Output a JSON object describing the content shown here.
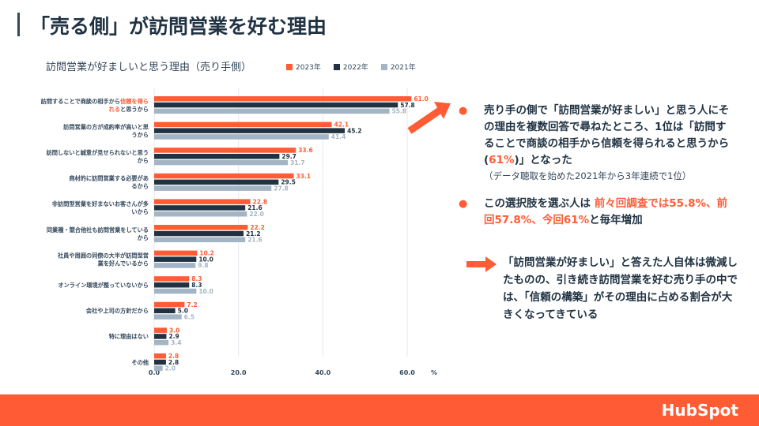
{
  "page": {
    "title": "「売る側」が訪問営業を好む理由",
    "logo_text": "HubSpot"
  },
  "chart_data": {
    "type": "bar",
    "orientation": "horizontal",
    "title": "訪問営業が好ましいと思う理由（売り手側）",
    "xunit": "%",
    "xlim": [
      0,
      60
    ],
    "xticks": [
      "0.0",
      "20.0",
      "40.0",
      "60.0"
    ],
    "grid": true,
    "legend_placement": "top",
    "categories": [
      {
        "label_parts": [
          {
            "text": "訪問することで商談の相手から"
          },
          {
            "text": "信頼を得ら",
            "highlight": true
          },
          {
            "text": "\n"
          },
          {
            "text": "れる",
            "highlight": true
          },
          {
            "text": "と思うから"
          }
        ]
      },
      {
        "label_parts": [
          {
            "text": "訪問営業の方が成約率が高いと思\nうから"
          }
        ]
      },
      {
        "label_parts": [
          {
            "text": "訪問しないと誠意が見せられないと思う\nから"
          }
        ]
      },
      {
        "label_parts": [
          {
            "text": "商材的に訪問営業する必要があ\nるから"
          }
        ]
      },
      {
        "label_parts": [
          {
            "text": "非訪問型営業を好まないお客さんが多\nいから"
          }
        ]
      },
      {
        "label_parts": [
          {
            "text": "同業種・競合他社も訪問営業をしている\nから"
          }
        ]
      },
      {
        "label_parts": [
          {
            "text": "社員や周囲の同僚の大半が訪問型営\n業を好んでいるから"
          }
        ]
      },
      {
        "label_parts": [
          {
            "text": "オンライン環境が整っていないから"
          }
        ]
      },
      {
        "label_parts": [
          {
            "text": "会社や上司の方針だから"
          }
        ]
      },
      {
        "label_parts": [
          {
            "text": "特に理由はない"
          }
        ]
      },
      {
        "label_parts": [
          {
            "text": "その他"
          }
        ]
      }
    ],
    "series": [
      {
        "name": "2023年",
        "color": "#ff5c35",
        "values": [
          61.0,
          42.1,
          33.6,
          33.1,
          22.8,
          22.2,
          10.2,
          8.3,
          7.2,
          3.0,
          2.8
        ]
      },
      {
        "name": "2022年",
        "color": "#213343",
        "values": [
          57.8,
          45.2,
          29.7,
          29.5,
          21.6,
          21.2,
          10.0,
          8.3,
          5.0,
          2.9,
          2.8
        ]
      },
      {
        "name": "2021年",
        "color": "#a3b4c4",
        "values": [
          55.8,
          41.4,
          31.7,
          27.8,
          22.0,
          21.6,
          9.8,
          10.0,
          6.5,
          3.4,
          2.0
        ]
      }
    ]
  },
  "bullets": [
    {
      "segments": [
        {
          "text": "売り手の側で「訪問営業が好ましい」と思う人にその理由を複数回答で尋ねたところ、1位は「訪問することで商談の相手から信頼を得られると思うから("
        },
        {
          "text": "61%",
          "highlight": true
        },
        {
          "text": ")」となった"
        }
      ],
      "note": "（データ聴取を始めた2021年から3年連続で1位）"
    },
    {
      "segments": [
        {
          "text": "この選択肢を選ぶ人は "
        },
        {
          "text": "前々回調査では55.8%、前回57.8%、今回61%",
          "highlight": true
        },
        {
          "text": "と毎年増加"
        }
      ],
      "note": ""
    }
  ],
  "conclusion": "「訪問営業が好ましい」と答えた人自体は微減したものの、引き続き訪問営業を好む売り手の中では、「信頼の構築」がその理由に占める割合が大きくなってきている",
  "colors": {
    "accent": "#ff5c35",
    "dark": "#213343",
    "light": "#a3b4c4"
  }
}
